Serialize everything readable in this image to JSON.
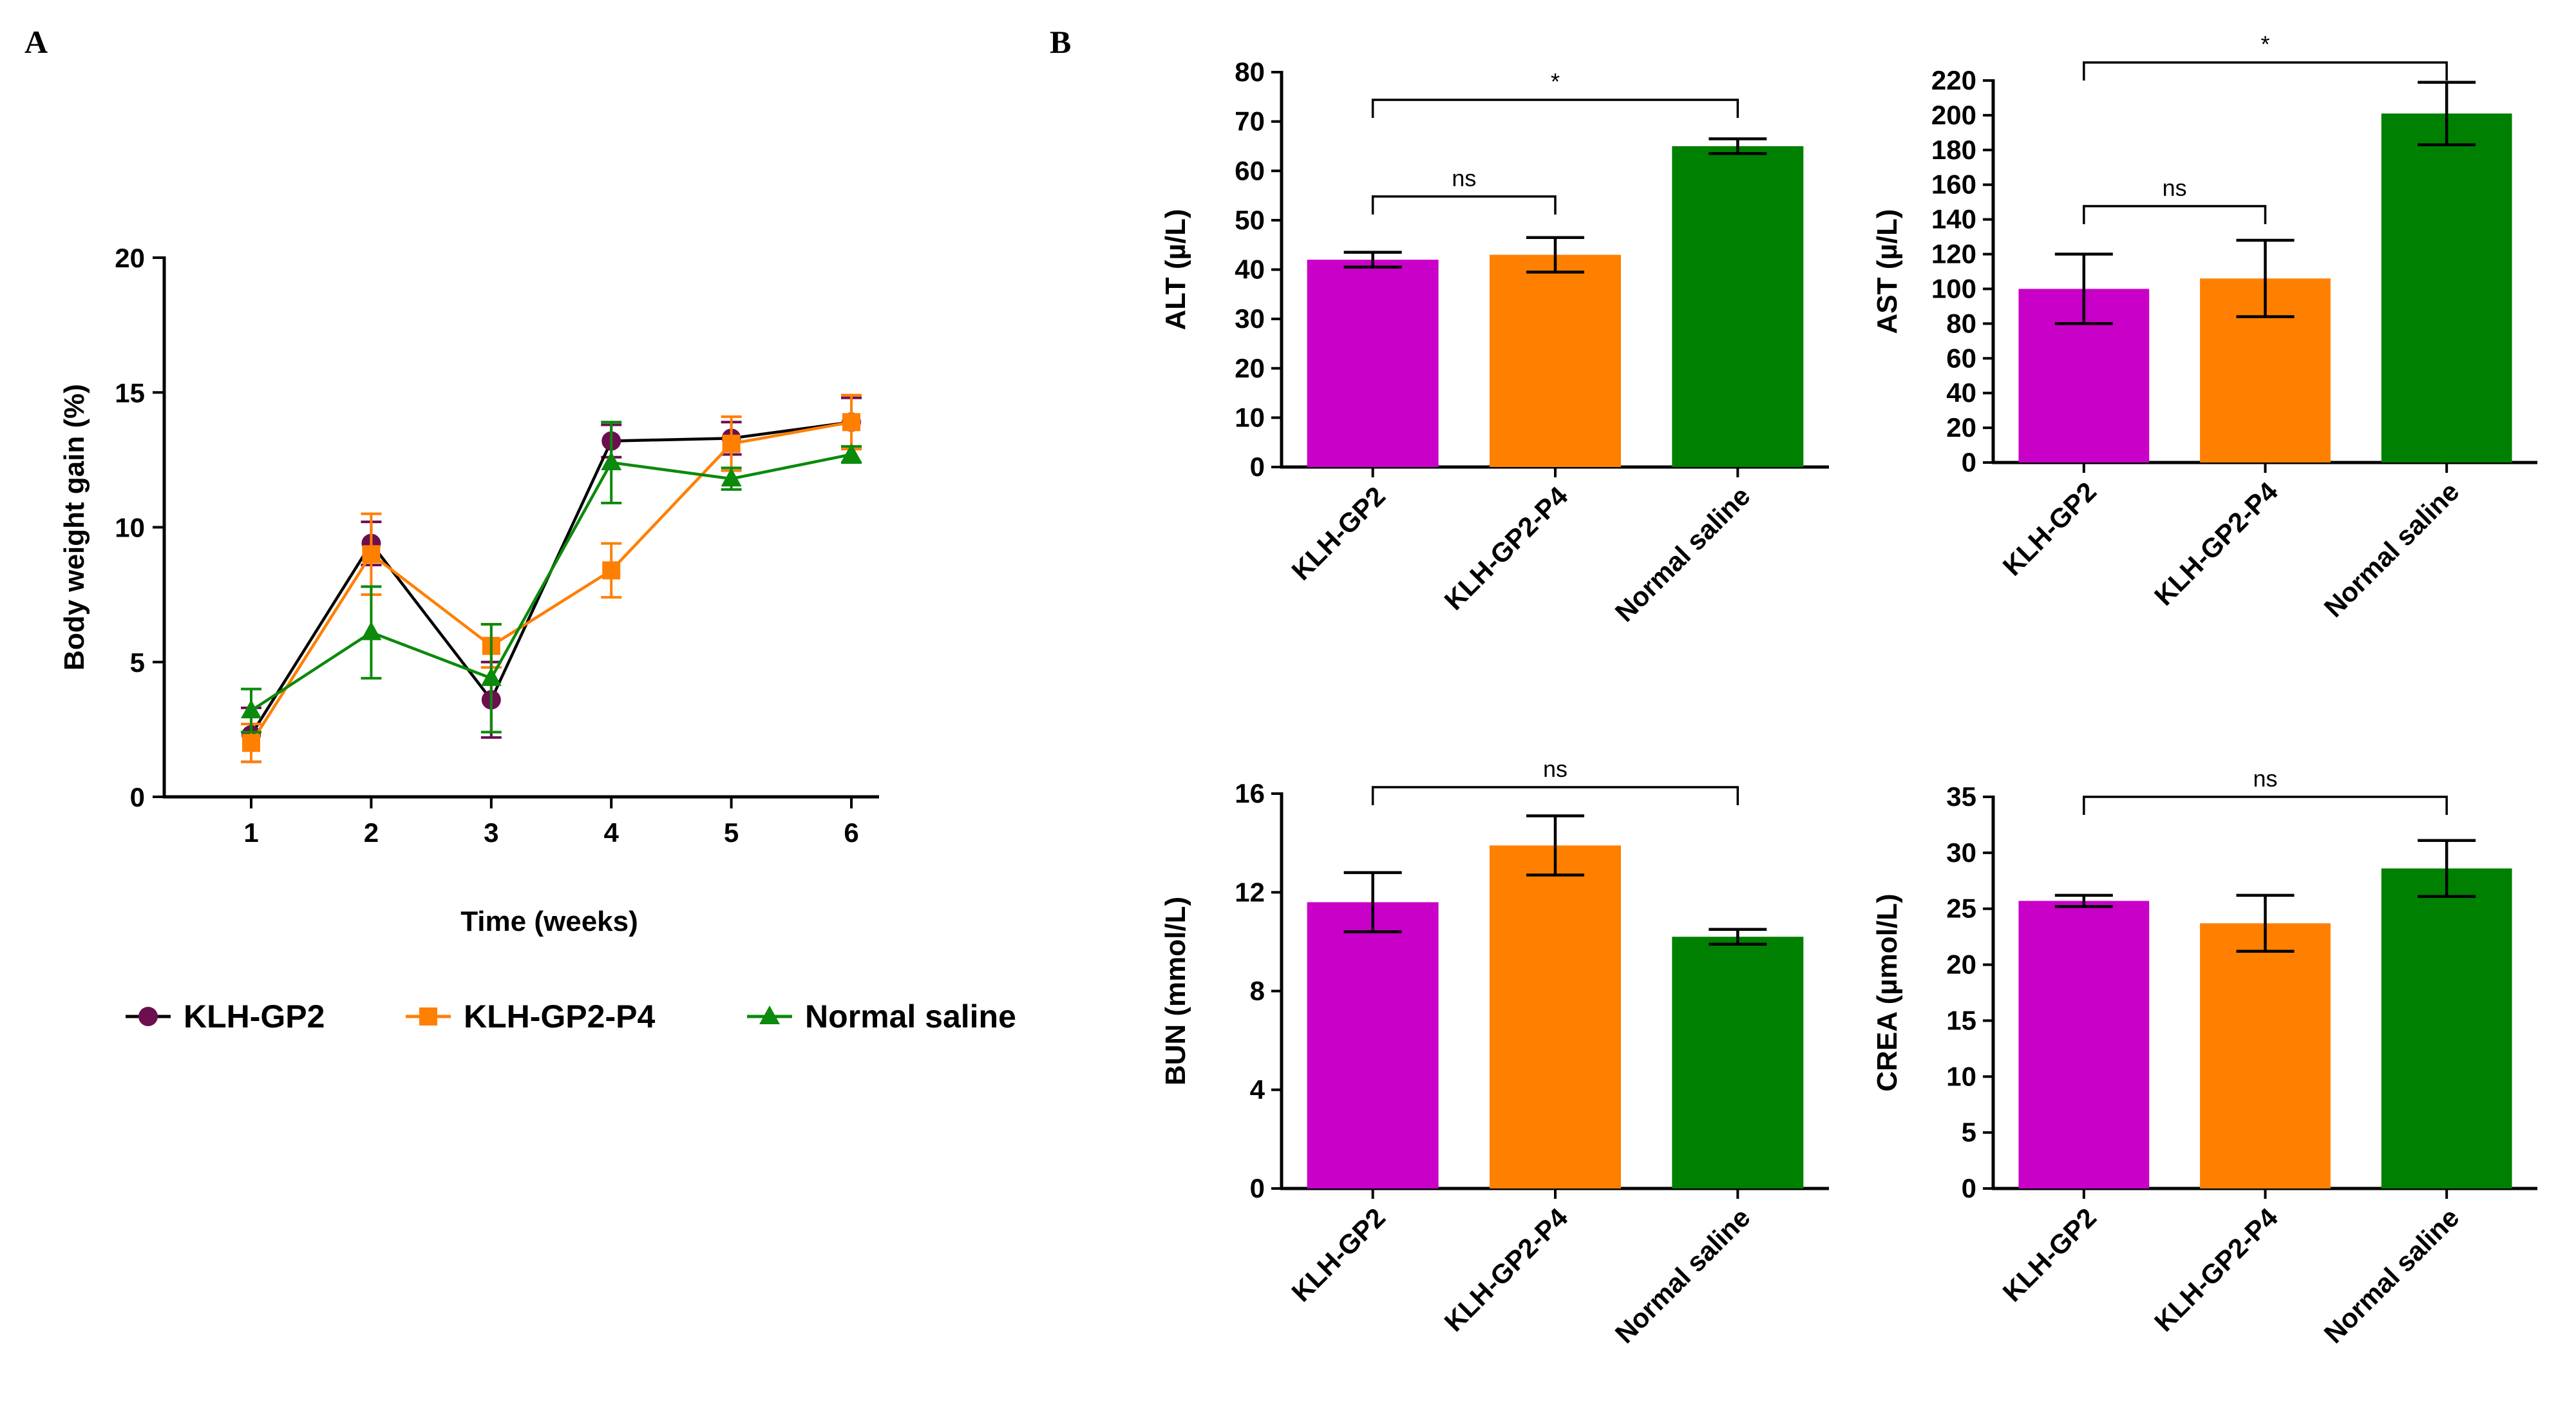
{
  "panel_labels": [
    "A",
    "B"
  ],
  "colors": {
    "KLH-GP2": "#6b0f4f",
    "KLH-GP2-P4": "#ff7f00",
    "Normal saline": "#0b8a0b",
    "bar_KLH-GP2": "#c800c8",
    "bar_KLH-GP2-P4": "#ff8000",
    "bar_Normal saline": "#008000"
  },
  "chart_data": [
    {
      "id": "A",
      "type": "line",
      "xlabel": "Time (weeks)",
      "ylabel": "Body weight gain (%)",
      "x": [
        1,
        2,
        3,
        4,
        5,
        6
      ],
      "xticks": [
        "1",
        "2",
        "3",
        "4",
        "5",
        "6"
      ],
      "ylim": [
        0,
        20
      ],
      "yticks": [
        "0",
        "5",
        "10",
        "15",
        "20"
      ],
      "legend_position": "bottom",
      "series": [
        {
          "name": "KLH-GP2",
          "marker": "circle",
          "values": [
            2.3,
            9.4,
            3.6,
            13.2,
            13.3,
            13.9
          ],
          "errors": [
            1.0,
            0.8,
            1.4,
            0.6,
            0.6,
            0.9
          ]
        },
        {
          "name": "KLH-GP2-P4",
          "marker": "square",
          "values": [
            2.0,
            9.0,
            5.6,
            8.4,
            13.1,
            13.9
          ],
          "errors": [
            0.7,
            1.5,
            0.8,
            1.0,
            1.0,
            1.0
          ]
        },
        {
          "name": "Normal saline",
          "marker": "triangle",
          "values": [
            3.2,
            6.1,
            4.4,
            12.4,
            11.8,
            12.7
          ],
          "errors": [
            0.8,
            1.7,
            2.0,
            1.5,
            0.4,
            0.3
          ]
        }
      ]
    },
    {
      "id": "ALT",
      "type": "bar",
      "ylabel": "ALT (µ/L)",
      "categories": [
        "KLH-GP2",
        "KLH-GP2-P4",
        "Normal saline"
      ],
      "values": [
        42,
        43,
        65
      ],
      "errors": [
        1.5,
        3.5,
        1.5
      ],
      "ylim": [
        0,
        80
      ],
      "yticks": [
        "0",
        "10",
        "20",
        "30",
        "40",
        "50",
        "60",
        "70",
        "80"
      ],
      "significance": [
        {
          "from": 0,
          "to": 1,
          "label": "ns"
        },
        {
          "from": 0,
          "to": 2,
          "label": "*"
        }
      ]
    },
    {
      "id": "AST",
      "type": "bar",
      "ylabel": "AST (µ/L)",
      "categories": [
        "KLH-GP2",
        "KLH-GP2-P4",
        "Normal saline"
      ],
      "values": [
        100,
        106,
        201
      ],
      "errors": [
        20,
        22,
        18
      ],
      "ylim": [
        0,
        220
      ],
      "yticks": [
        "0",
        "20",
        "40",
        "60",
        "80",
        "100",
        "120",
        "140",
        "160",
        "180",
        "200",
        "220"
      ],
      "significance": [
        {
          "from": 0,
          "to": 1,
          "label": "ns"
        },
        {
          "from": 0,
          "to": 2,
          "label": "*"
        }
      ]
    },
    {
      "id": "BUN",
      "type": "bar",
      "ylabel": "BUN (mmol/L)",
      "categories": [
        "KLH-GP2",
        "KLH-GP2-P4",
        "Normal saline"
      ],
      "values": [
        11.6,
        13.9,
        10.2
      ],
      "errors": [
        1.2,
        1.2,
        0.3
      ],
      "ylim": [
        0,
        16
      ],
      "yticks": [
        "0",
        "4",
        "8",
        "12",
        "16"
      ],
      "significance": [
        {
          "from": 0,
          "to": 2,
          "label": "ns"
        }
      ]
    },
    {
      "id": "CREA",
      "type": "bar",
      "ylabel": "CREA (µmol/L)",
      "categories": [
        "KLH-GP2",
        "KLH-GP2-P4",
        "Normal saline"
      ],
      "values": [
        25.7,
        23.7,
        28.6
      ],
      "errors": [
        0.5,
        2.5,
        2.5
      ],
      "ylim": [
        0,
        35
      ],
      "yticks": [
        "0",
        "5",
        "10",
        "15",
        "20",
        "25",
        "30",
        "35"
      ],
      "significance": [
        {
          "from": 0,
          "to": 2,
          "label": "ns"
        }
      ]
    }
  ]
}
